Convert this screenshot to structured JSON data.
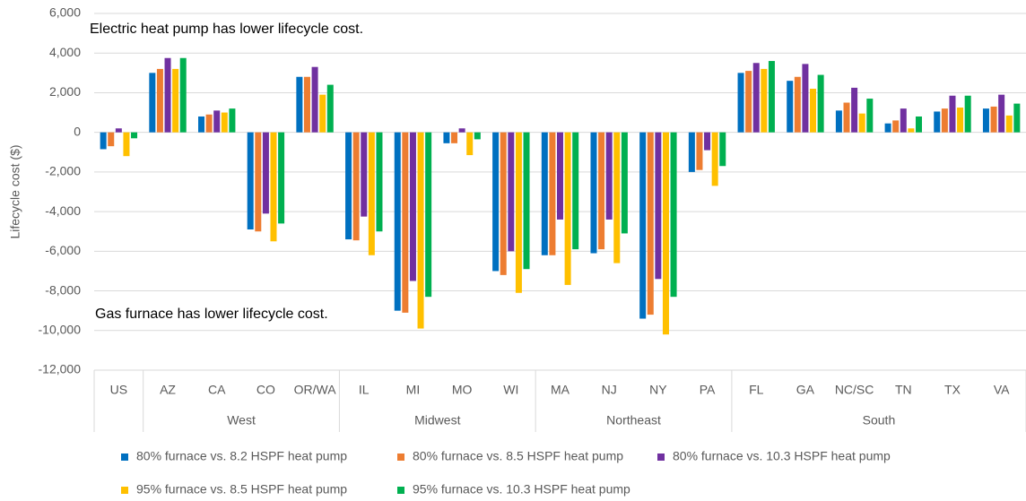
{
  "chart_data": {
    "type": "bar",
    "y_label": "Lifecycle cost ($)",
    "annotations": [
      "Electric heat pump has lower lifecycle cost.",
      "Gas furnace has lower lifecycle cost."
    ],
    "categories": [
      "US",
      "AZ",
      "CA",
      "CO",
      "OR/WA",
      "IL",
      "MI",
      "MO",
      "WI",
      "MA",
      "NJ",
      "NY",
      "PA",
      "FL",
      "GA",
      "NC/SC",
      "TN",
      "TX",
      "VA"
    ],
    "category_groups": [
      null,
      "West",
      "West",
      "West",
      "West",
      "Midwest",
      "Midwest",
      "Midwest",
      "Midwest",
      "Northeast",
      "Northeast",
      "Northeast",
      "Northeast",
      "South",
      "South",
      "South",
      "South",
      "South",
      "South"
    ],
    "series": [
      {
        "name": "80% furnace vs. 8.2 HSPF heat pump",
        "color": "#0070c0",
        "values": [
          -850,
          3000,
          800,
          -4900,
          2800,
          -5400,
          -9000,
          -550,
          -7000,
          -6200,
          -6100,
          -9400,
          -2000,
          3000,
          2600,
          1100,
          450,
          1050,
          1200
        ]
      },
      {
        "name": "80% furnace vs. 8.5 HSPF heat pump",
        "color": "#ed7d31",
        "values": [
          -700,
          3200,
          900,
          -5000,
          2800,
          -5450,
          -9100,
          -550,
          -7200,
          -6200,
          -5900,
          -9200,
          -1900,
          3100,
          2800,
          1500,
          600,
          1200,
          1300
        ]
      },
      {
        "name": "80% furnace vs. 10.3 HSPF heat pump",
        "color": "#7030a0",
        "values": [
          200,
          3750,
          1100,
          -4100,
          3300,
          -4250,
          -7500,
          200,
          -6000,
          -4400,
          -4400,
          -7400,
          -900,
          3500,
          3450,
          2250,
          1200,
          1850,
          1900
        ]
      },
      {
        "name": "95% furnace vs. 8.5 HSPF heat pump",
        "color": "#ffc000",
        "values": [
          -1200,
          3200,
          1000,
          -5500,
          1900,
          -6200,
          -9900,
          -1150,
          -8100,
          -7700,
          -6600,
          -10200,
          -2700,
          3200,
          2200,
          950,
          200,
          1250,
          850
        ]
      },
      {
        "name": "95% furnace vs. 10.3 HSPF heat pump",
        "color": "#00b050",
        "values": [
          -300,
          3750,
          1200,
          -4600,
          2400,
          -5000,
          -8300,
          -350,
          -6900,
          -5900,
          -5100,
          -8300,
          -1700,
          3600,
          2900,
          1700,
          800,
          1850,
          1450
        ]
      }
    ],
    "ylim": [
      -12000,
      6000
    ],
    "yticks": [
      {
        "value": -12000,
        "label": "-12,000"
      },
      {
        "value": -10000,
        "label": "-10,000"
      },
      {
        "value": -8000,
        "label": "-8,000"
      },
      {
        "value": -6000,
        "label": "-6,000"
      },
      {
        "value": -4000,
        "label": "-4,000"
      },
      {
        "value": -2000,
        "label": "-2,000"
      },
      0,
      {
        "value": 2000,
        "label": "2,000"
      },
      {
        "value": 4000,
        "label": "4,000"
      },
      {
        "value": 6000,
        "label": "6,000"
      }
    ],
    "grid": true,
    "legend": "bottom"
  }
}
